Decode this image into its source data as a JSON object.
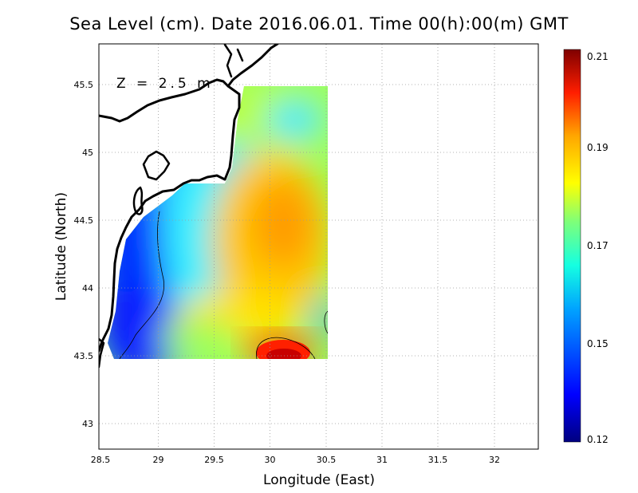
{
  "title": "Sea Level (cm). Date 2016.06.01. Time 00(h):00(m) GMT",
  "depth_label": "Z = 2.5 m",
  "axes": {
    "x_label": "Longitude (East)",
    "y_label": "Latitude (North)",
    "x_ticks": [
      "28.5",
      "29",
      "29.5",
      "30",
      "30.5",
      "31",
      "31.5",
      "32"
    ],
    "y_ticks": [
      "45.5",
      "45",
      "44.5",
      "44",
      "43.5",
      "43"
    ],
    "x_range": [
      28.5,
      32.4
    ],
    "y_range": [
      42.8,
      45.8
    ]
  },
  "colorbar": {
    "ticks": [
      "0.21",
      "0.19",
      "0.17",
      "0.15",
      "0.12"
    ],
    "range": [
      0.12,
      0.21
    ],
    "colormap": "jet"
  },
  "chart_data": {
    "type": "heatmap",
    "title": "Sea Level (cm). Date 2016.06.01. Time 00(h):00(m) GMT",
    "xlabel": "Longitude (East)",
    "ylabel": "Latitude (North)",
    "xlim": [
      28.5,
      32.4
    ],
    "ylim": [
      42.8,
      45.8
    ],
    "value_range": [
      0.12,
      0.21
    ],
    "grid": true,
    "hotspots": [
      {
        "lon": 30.05,
        "lat": 43.53,
        "value": 0.21
      },
      {
        "lon": 30.1,
        "lat": 44.45,
        "value": 0.19
      },
      {
        "lon": 28.75,
        "lat": 43.65,
        "value": 0.12
      },
      {
        "lon": 30.2,
        "lat": 45.3,
        "value": 0.16
      }
    ]
  },
  "colors": {
    "coast": "#000000",
    "grid": "#9a9a9a",
    "background": "#ffffff"
  }
}
